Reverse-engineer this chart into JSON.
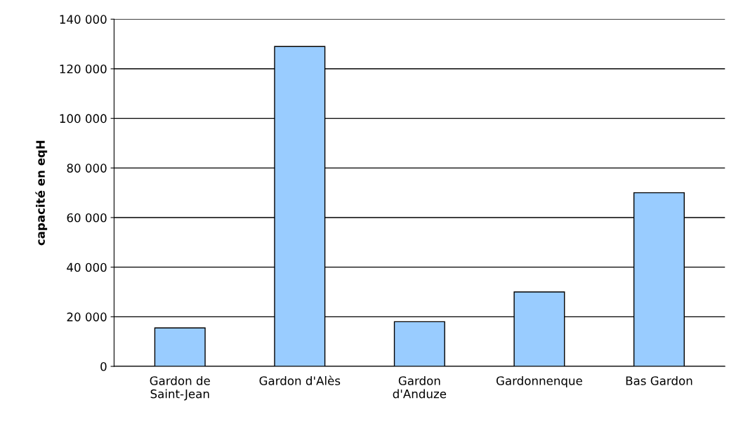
{
  "chart_data": {
    "type": "bar",
    "ylabel": "capacité en eqH",
    "categories": [
      "Gardon de\nSaint-Jean",
      "Gardon d'Alès",
      "Gardon\nd'Anduze",
      "Gardonnenque",
      "Bas Gardon"
    ],
    "values": [
      15500,
      129000,
      18000,
      30000,
      70000
    ],
    "color": "#99ccff",
    "ylim": [
      0,
      140000
    ],
    "yticks": [
      {
        "value": 0,
        "label": "0"
      },
      {
        "value": 20000,
        "label": "20 000"
      },
      {
        "value": 40000,
        "label": "40 000"
      },
      {
        "value": 60000,
        "label": "60 000"
      },
      {
        "value": 80000,
        "label": "80 000"
      },
      {
        "value": 100000,
        "label": "100 000"
      },
      {
        "value": 120000,
        "label": "120 000"
      },
      {
        "value": 140000,
        "label": "140 000"
      }
    ],
    "grid": "y",
    "legend": false
  }
}
